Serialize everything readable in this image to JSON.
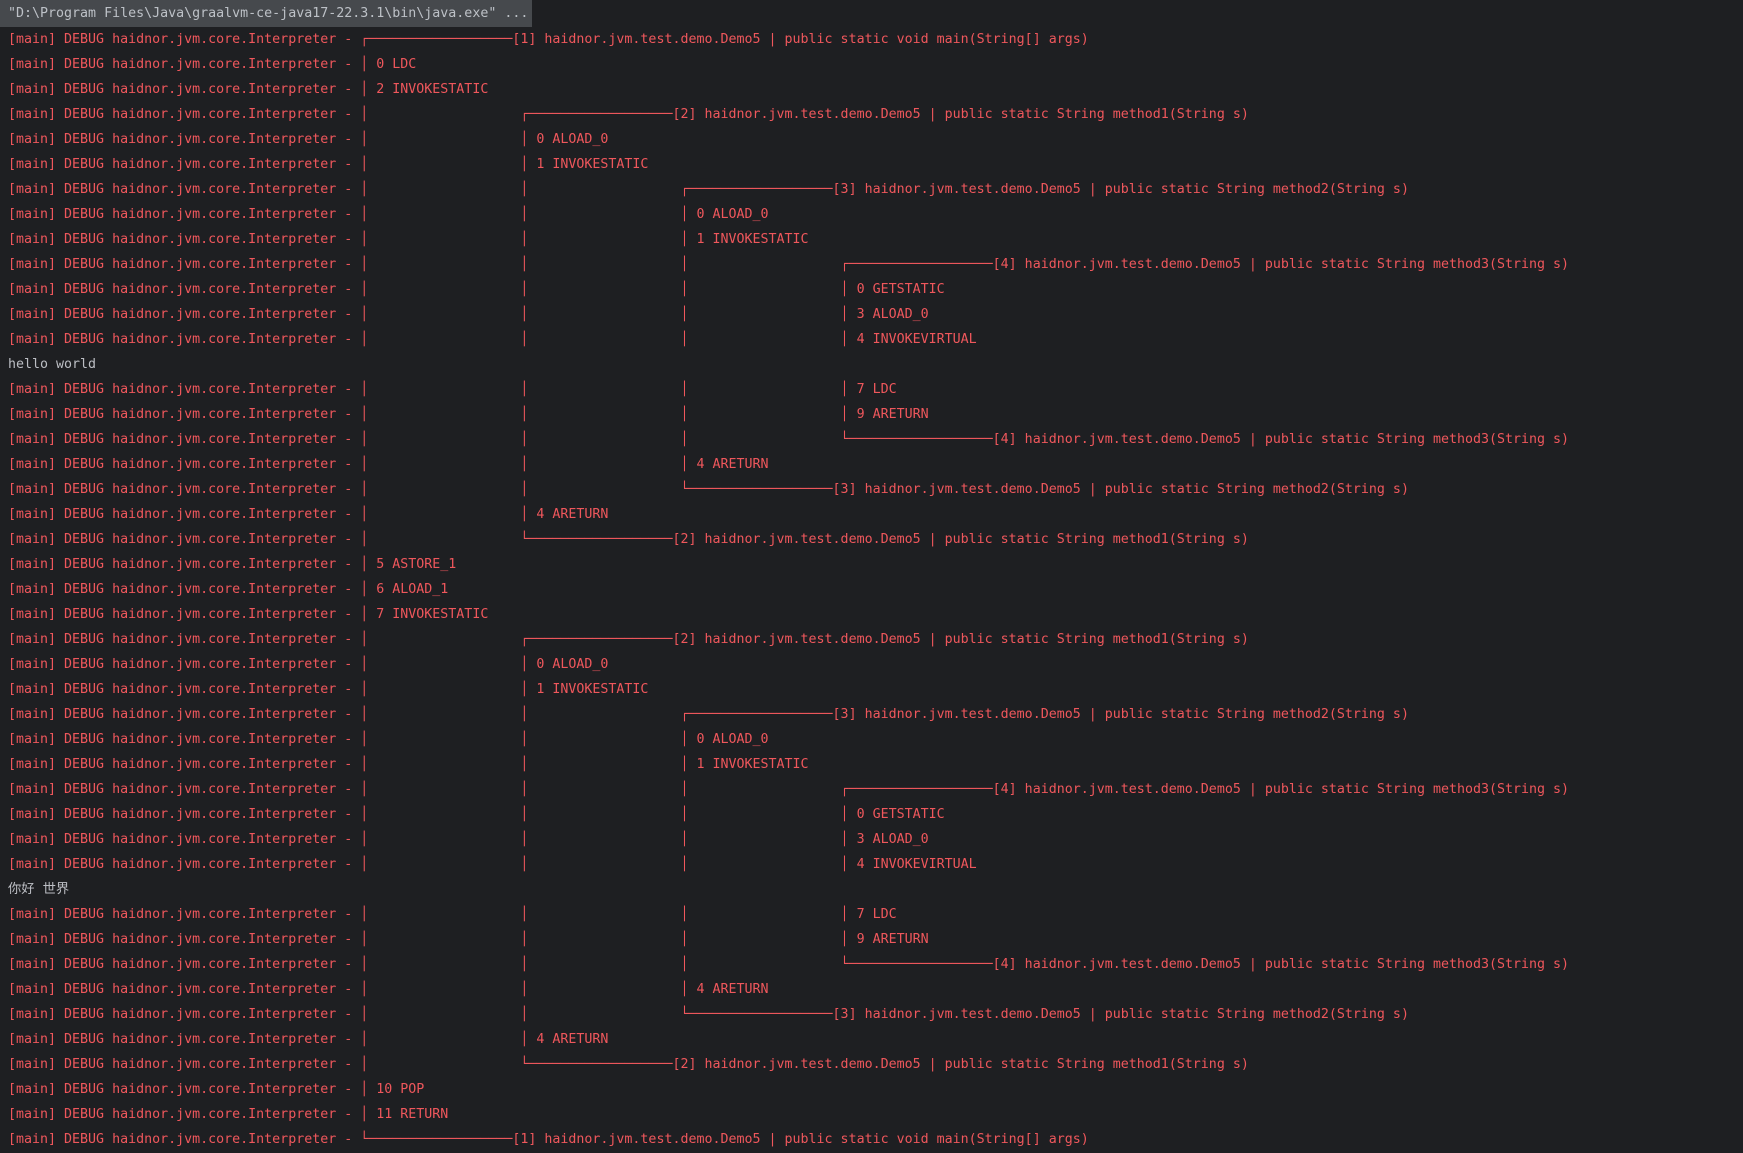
{
  "colors": {
    "background": "#1e1f22",
    "log_red": "#ef575c",
    "stdout_text": "#bcbec4",
    "command_bg": "#46494d",
    "command_fg": "#bdc1c7"
  },
  "title": {
    "command": "\"D:\\Program Files\\Java\\graalvm-ce-java17-22.3.1\\bin\\java.exe\" ..."
  },
  "log": {
    "prefix": "[main] DEBUG haidnor.jvm.core.Interpreter - ",
    "class_name": "haidnor.jvm.test.demo.Demo5",
    "separator": " | ",
    "glyphs": {
      "bar": "│",
      "corner_enter": "┌",
      "corner_exit": "└",
      "dash": "─"
    },
    "indent_base": 44,
    "indent_step": 20,
    "dash_count": 18,
    "frames": [
      {
        "id": 1,
        "signature": "public static void main(String[] args)"
      },
      {
        "id": 2,
        "signature": "public static String method1(String s)"
      },
      {
        "id": 3,
        "signature": "public static String method2(String s)"
      },
      {
        "id": 4,
        "signature": "public static String method3(String s)"
      }
    ],
    "lines": [
      {
        "type": "enter",
        "depth": 1
      },
      {
        "type": "instruction",
        "depth": 1,
        "text": "0 LDC"
      },
      {
        "type": "instruction",
        "depth": 1,
        "text": "2 INVOKESTATIC"
      },
      {
        "type": "enter",
        "depth": 2
      },
      {
        "type": "instruction",
        "depth": 2,
        "text": "0 ALOAD_0"
      },
      {
        "type": "instruction",
        "depth": 2,
        "text": "1 INVOKESTATIC"
      },
      {
        "type": "enter",
        "depth": 3
      },
      {
        "type": "instruction",
        "depth": 3,
        "text": "0 ALOAD_0"
      },
      {
        "type": "instruction",
        "depth": 3,
        "text": "1 INVOKESTATIC"
      },
      {
        "type": "enter",
        "depth": 4
      },
      {
        "type": "instruction",
        "depth": 4,
        "text": "0 GETSTATIC"
      },
      {
        "type": "instruction",
        "depth": 4,
        "text": "3 ALOAD_0"
      },
      {
        "type": "instruction",
        "depth": 4,
        "text": "4 INVOKEVIRTUAL"
      },
      {
        "type": "stdout",
        "text": "hello world"
      },
      {
        "type": "instruction",
        "depth": 4,
        "text": "7 LDC"
      },
      {
        "type": "instruction",
        "depth": 4,
        "text": "9 ARETURN"
      },
      {
        "type": "exit",
        "depth": 4
      },
      {
        "type": "instruction",
        "depth": 3,
        "text": "4 ARETURN"
      },
      {
        "type": "exit",
        "depth": 3
      },
      {
        "type": "instruction",
        "depth": 2,
        "text": "4 ARETURN"
      },
      {
        "type": "exit",
        "depth": 2
      },
      {
        "type": "instruction",
        "depth": 1,
        "text": "5 ASTORE_1"
      },
      {
        "type": "instruction",
        "depth": 1,
        "text": "6 ALOAD_1"
      },
      {
        "type": "instruction",
        "depth": 1,
        "text": "7 INVOKESTATIC"
      },
      {
        "type": "enter",
        "depth": 2
      },
      {
        "type": "instruction",
        "depth": 2,
        "text": "0 ALOAD_0"
      },
      {
        "type": "instruction",
        "depth": 2,
        "text": "1 INVOKESTATIC"
      },
      {
        "type": "enter",
        "depth": 3
      },
      {
        "type": "instruction",
        "depth": 3,
        "text": "0 ALOAD_0"
      },
      {
        "type": "instruction",
        "depth": 3,
        "text": "1 INVOKESTATIC"
      },
      {
        "type": "enter",
        "depth": 4
      },
      {
        "type": "instruction",
        "depth": 4,
        "text": "0 GETSTATIC"
      },
      {
        "type": "instruction",
        "depth": 4,
        "text": "3 ALOAD_0"
      },
      {
        "type": "instruction",
        "depth": 4,
        "text": "4 INVOKEVIRTUAL"
      },
      {
        "type": "stdout",
        "text": "你好 世界"
      },
      {
        "type": "instruction",
        "depth": 4,
        "text": "7 LDC"
      },
      {
        "type": "instruction",
        "depth": 4,
        "text": "9 ARETURN"
      },
      {
        "type": "exit",
        "depth": 4
      },
      {
        "type": "instruction",
        "depth": 3,
        "text": "4 ARETURN"
      },
      {
        "type": "exit",
        "depth": 3
      },
      {
        "type": "instruction",
        "depth": 2,
        "text": "4 ARETURN"
      },
      {
        "type": "exit",
        "depth": 2
      },
      {
        "type": "instruction",
        "depth": 1,
        "text": "10 POP"
      },
      {
        "type": "instruction",
        "depth": 1,
        "text": "11 RETURN"
      },
      {
        "type": "exit",
        "depth": 1
      }
    ]
  }
}
